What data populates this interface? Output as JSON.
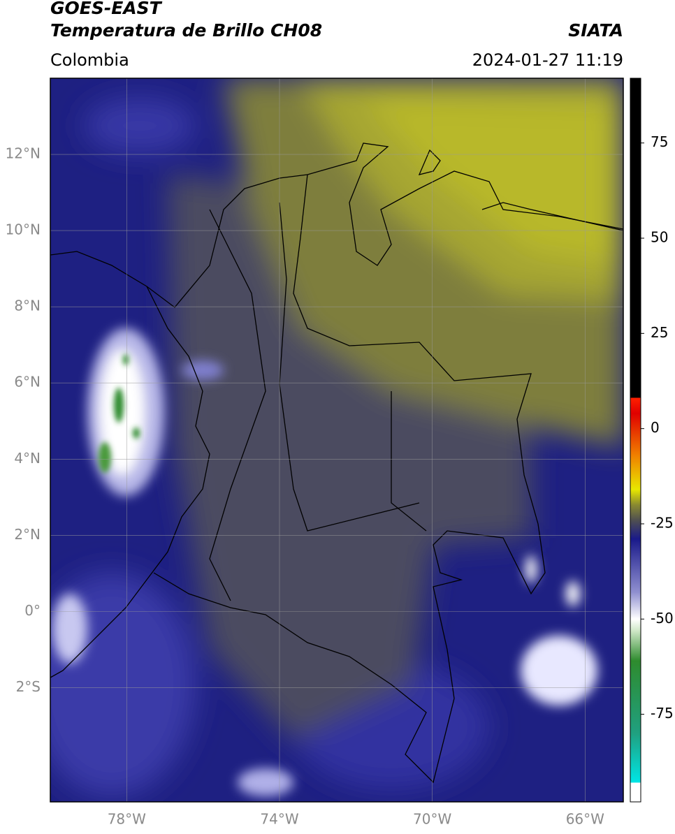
{
  "header": {
    "title_line1": "GOES-EAST",
    "title_line2": "Temperatura de Brillo CH08",
    "source": "SIATA",
    "region": "Colombia",
    "datetime": "2024-01-27 11:19"
  },
  "map": {
    "xlim": [
      -80,
      -65
    ],
    "ylim": [
      -5,
      14
    ],
    "xticks": [
      {
        "value": -78,
        "label": "78°W"
      },
      {
        "value": -74,
        "label": "74°W"
      },
      {
        "value": -70,
        "label": "70°W"
      },
      {
        "value": -66,
        "label": "66°W"
      }
    ],
    "yticks": [
      {
        "value": 12,
        "label": "12°N"
      },
      {
        "value": 10,
        "label": "10°N"
      },
      {
        "value": 8,
        "label": "8°N"
      },
      {
        "value": 6,
        "label": "6°N"
      },
      {
        "value": 4,
        "label": "4°N"
      },
      {
        "value": 2,
        "label": "2°N"
      },
      {
        "value": 0,
        "label": "0°"
      },
      {
        "value": -2,
        "label": "2°S"
      }
    ],
    "grid": true,
    "grid_color": "#9a9a9a"
  },
  "colorbar": {
    "lim": [
      -98,
      92
    ],
    "ticks": [
      75,
      50,
      25,
      0,
      -25,
      -50,
      -75
    ],
    "stops": [
      {
        "value": -98,
        "color": "#ffffff"
      },
      {
        "value": -93,
        "color": "#ffffff"
      },
      {
        "value": -92.9,
        "color": "#00e5e5"
      },
      {
        "value": -80,
        "color": "#20a080"
      },
      {
        "value": -61,
        "color": "#2e8b2e"
      },
      {
        "value": -53,
        "color": "#d0e8c8"
      },
      {
        "value": -50,
        "color": "#ffffff"
      },
      {
        "value": -43,
        "color": "#9090d0"
      },
      {
        "value": -29,
        "color": "#1a1a8a"
      },
      {
        "value": -24,
        "color": "#505050"
      },
      {
        "value": -20,
        "color": "#8a8a30"
      },
      {
        "value": -16,
        "color": "#e8e800"
      },
      {
        "value": -7,
        "color": "#f08000"
      },
      {
        "value": 4,
        "color": "#e00000"
      },
      {
        "value": 8,
        "color": "#ff2000"
      },
      {
        "value": 8.2,
        "color": "#000000"
      },
      {
        "value": 92,
        "color": "#000000"
      }
    ]
  }
}
